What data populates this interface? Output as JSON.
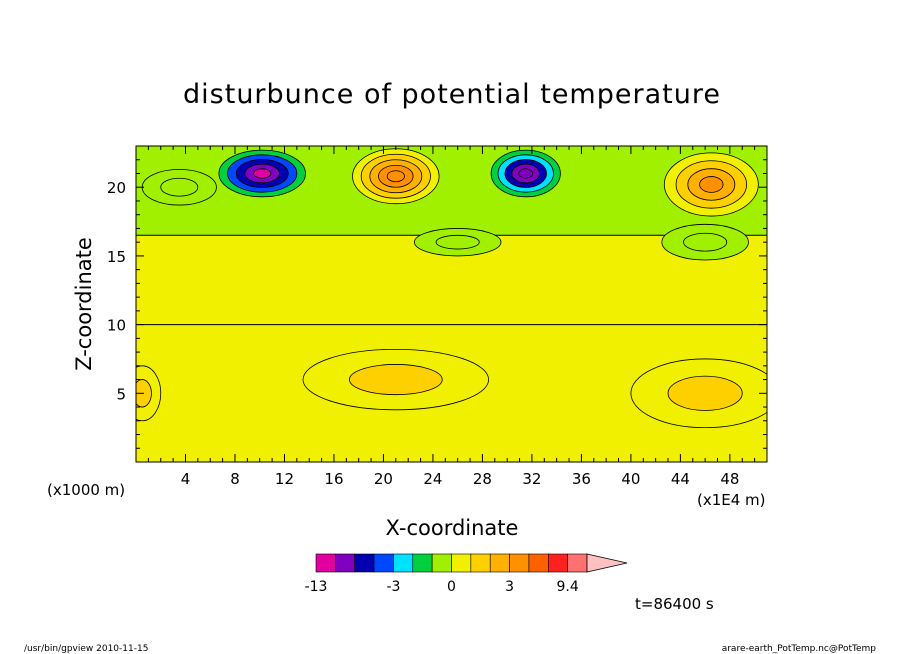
{
  "footer": {
    "left": "/usr/bin/gpview  2010-11-15",
    "right": "arare-earth_PotTemp.nc@PotTemp"
  },
  "time_label": "t=86400 s",
  "colors": {
    "min_triangle": "#e000a0",
    "bands": [
      "#e000a0",
      "#8000c0",
      "#0000b0",
      "#0048ff",
      "#00e0ff",
      "#00d040",
      "#a0f000",
      "#f0f000",
      "#ffd000",
      "#ffb000",
      "#ff9000",
      "#ff6000",
      "#ff2020",
      "#ff7070"
    ],
    "max_triangle": "#ffc0c0"
  },
  "chart_data": {
    "type": "heatmap",
    "title": "disturbunce of potential temperature",
    "xlabel": "X-coordinate",
    "ylabel": "Z-coordinate",
    "x_units_note": "(x1000 m)",
    "x_scale_note": "(x1E4 m)",
    "xlim": [
      0,
      51
    ],
    "ylim": [
      0,
      23
    ],
    "x_ticks": [
      4,
      8,
      12,
      16,
      20,
      24,
      28,
      32,
      36,
      40,
      44,
      48
    ],
    "y_ticks": [
      5,
      10,
      15,
      20
    ],
    "colorbar": {
      "ticks": [
        {
          "value": -13,
          "label": "-13"
        },
        {
          "value": -3,
          "label": "-3"
        },
        {
          "value": 0,
          "label": "0"
        },
        {
          "value": 3,
          "label": "3"
        },
        {
          "value": 9.4,
          "label": "9.4"
        }
      ]
    },
    "layers": [
      {
        "z_range": [
          0,
          10
        ],
        "value": 0.7
      },
      {
        "z_range": [
          10,
          16.5
        ],
        "value": 0.2
      },
      {
        "z_range": [
          16.5,
          23
        ],
        "value": -0.3
      }
    ],
    "features": [
      {
        "x": 10.2,
        "z": 21.0,
        "rx": 3.5,
        "rz": 1.7,
        "value": -8
      },
      {
        "x": 31.5,
        "z": 21.0,
        "rx": 2.8,
        "rz": 1.7,
        "value": -7
      },
      {
        "x": 21.0,
        "z": 20.8,
        "rx": 3.5,
        "rz": 2.0,
        "value": 4
      },
      {
        "x": 46.5,
        "z": 20.2,
        "rx": 3.8,
        "rz": 2.3,
        "value": 3
      },
      {
        "x": 21.0,
        "z": 6.0,
        "rx": 7.5,
        "rz": 2.2,
        "value": 1
      },
      {
        "x": 46.0,
        "z": 5.0,
        "rx": 6.0,
        "rz": 2.5,
        "value": 1
      },
      {
        "x": 0.5,
        "z": 5.0,
        "rx": 1.5,
        "rz": 2.0,
        "value": 1
      },
      {
        "x": 3.5,
        "z": 20.0,
        "rx": 3.0,
        "rz": 1.3,
        "value": -1
      },
      {
        "x": 26.0,
        "z": 16.0,
        "rx": 3.5,
        "rz": 1.0,
        "value": -1
      },
      {
        "x": 46.0,
        "z": 16.0,
        "rx": 3.5,
        "rz": 1.3,
        "value": -1
      }
    ]
  }
}
